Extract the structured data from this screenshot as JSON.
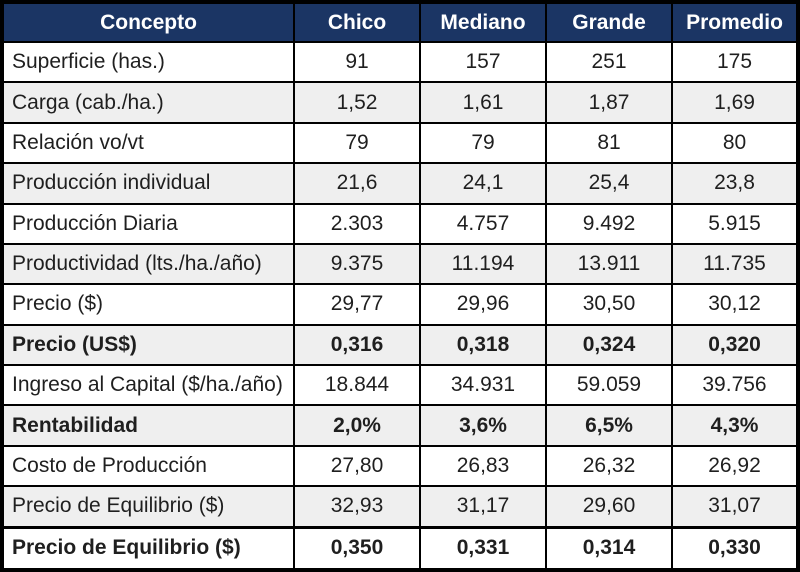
{
  "colors": {
    "header_bg": "#1b3564",
    "header_text": "#ffffff",
    "stripe_bg": "#efefef",
    "row_bg": "#ffffff",
    "border": "#000000",
    "text": "#1f1f1f"
  },
  "chart_data": {
    "type": "table",
    "title": "",
    "columns": [
      "Concepto",
      "Chico",
      "Mediano",
      "Grande",
      "Promedio"
    ],
    "rows": [
      {
        "label": "Superficie (has.)",
        "values": [
          "91",
          "157",
          "251",
          "175"
        ],
        "bold": false
      },
      {
        "label": "Carga (cab./ha.)",
        "values": [
          "1,52",
          "1,61",
          "1,87",
          "1,69"
        ],
        "bold": false
      },
      {
        "label": "Relación vo/vt",
        "values": [
          "79",
          "79",
          "81",
          "80"
        ],
        "bold": false
      },
      {
        "label": "Producción individual",
        "values": [
          "21,6",
          "24,1",
          "25,4",
          "23,8"
        ],
        "bold": false
      },
      {
        "label": "Producción Diaria",
        "values": [
          "2.303",
          "4.757",
          "9.492",
          "5.915"
        ],
        "bold": false
      },
      {
        "label": "Productividad (lts./ha./año)",
        "values": [
          "9.375",
          "11.194",
          "13.911",
          "11.735"
        ],
        "bold": false
      },
      {
        "label": "Precio ($)",
        "values": [
          "29,77",
          "29,96",
          "30,50",
          "30,12"
        ],
        "bold": false
      },
      {
        "label": "Precio (US$)",
        "values": [
          "0,316",
          "0,318",
          "0,324",
          "0,320"
        ],
        "bold": true
      },
      {
        "label": "Ingreso al Capital ($/ha./año)",
        "values": [
          "18.844",
          "34.931",
          "59.059",
          "39.756"
        ],
        "bold": false
      },
      {
        "label": "Rentabilidad",
        "values": [
          "2,0%",
          "3,6%",
          "6,5%",
          "4,3%"
        ],
        "bold": true
      },
      {
        "label": "Costo de Producción",
        "values": [
          "27,80",
          "26,83",
          "26,32",
          "26,92"
        ],
        "bold": false
      },
      {
        "label": "Precio de Equilibrio ($)",
        "values": [
          "32,93",
          "31,17",
          "29,60",
          "31,07"
        ],
        "bold": false
      },
      {
        "label": "Precio de Equilibrio ($)",
        "values": [
          "0,350",
          "0,331",
          "0,314",
          "0,330"
        ],
        "bold": true
      }
    ]
  }
}
